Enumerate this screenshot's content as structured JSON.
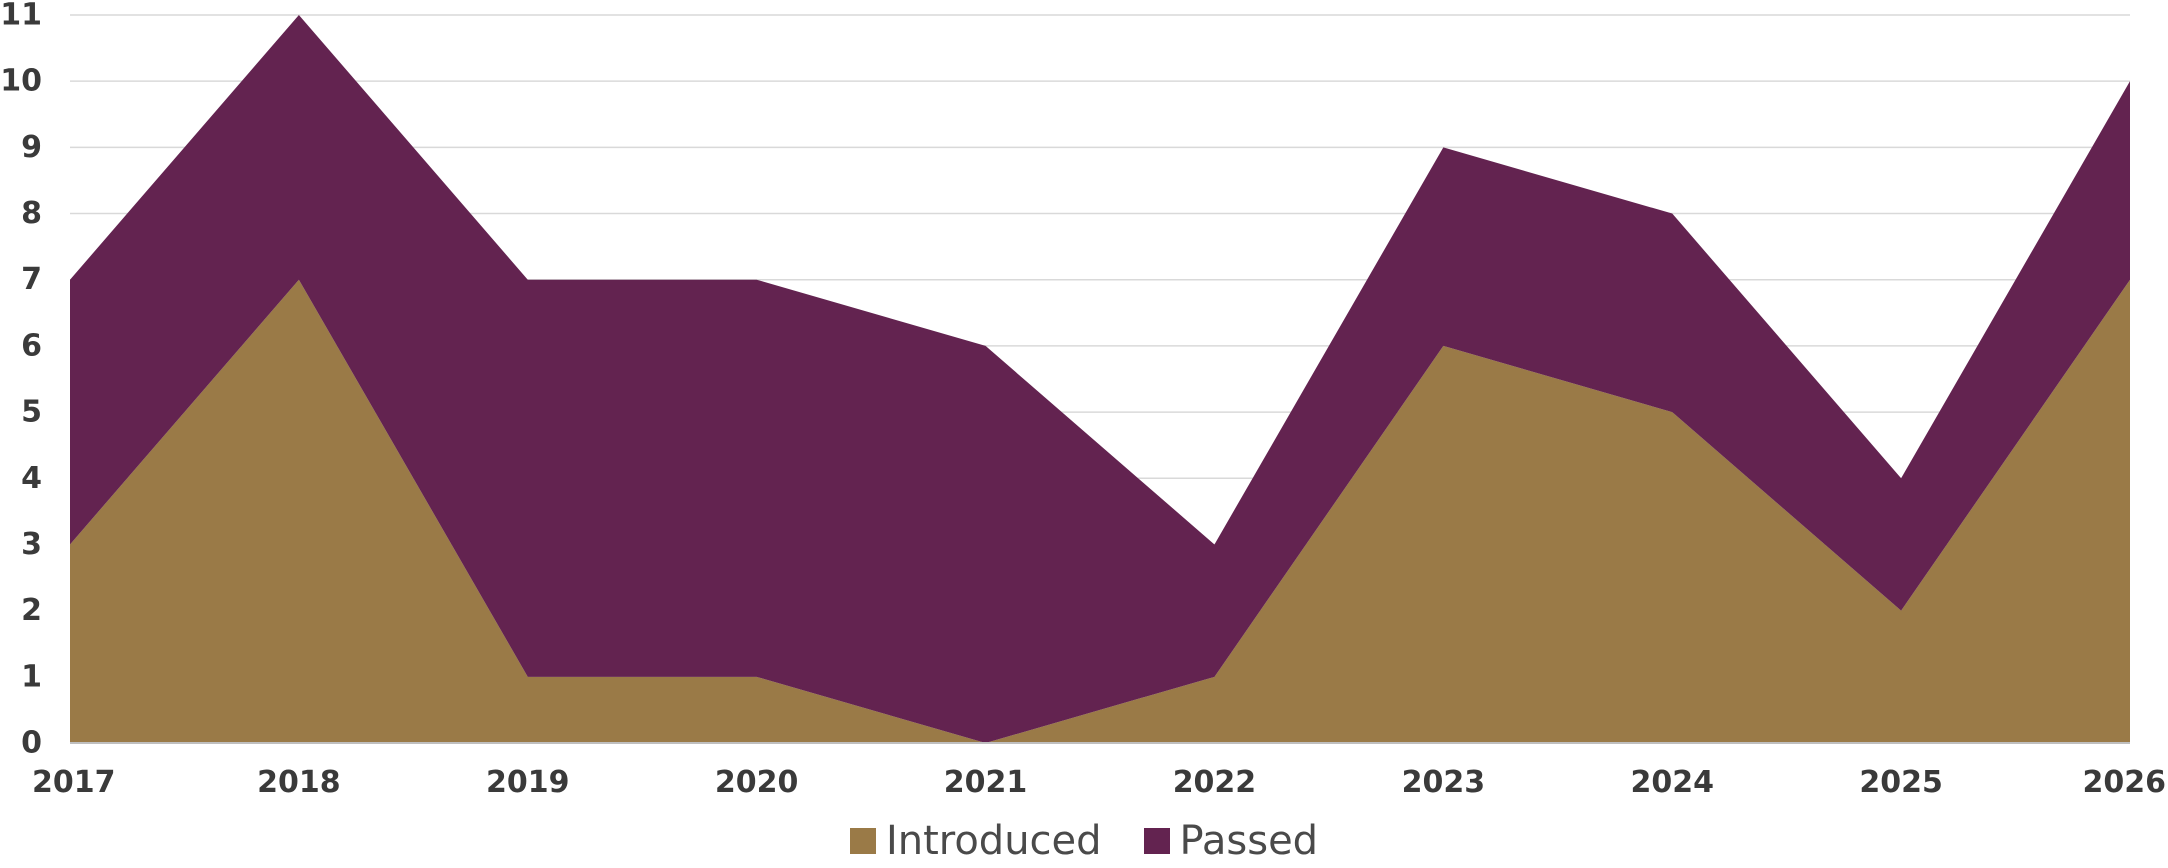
{
  "chart_data": {
    "type": "area",
    "stacked": true,
    "x": [
      "2017",
      "2018",
      "2019",
      "2020",
      "2021",
      "2022",
      "2023",
      "2024",
      "2025",
      "2026"
    ],
    "series": [
      {
        "name": "Introduced",
        "color": "#9A7A47",
        "values": [
          3,
          7,
          1,
          1,
          0,
          1,
          6,
          5,
          2,
          7
        ]
      },
      {
        "name": "Passed",
        "color": "#632350",
        "values": [
          4,
          4,
          6,
          6,
          6,
          2,
          3,
          3,
          2,
          3
        ]
      }
    ],
    "title": "",
    "xlabel": "",
    "ylabel": "",
    "ylim": [
      0,
      11
    ],
    "yticks": [
      "0",
      "1",
      "2",
      "3",
      "4",
      "5",
      "6",
      "7",
      "8",
      "9",
      "10",
      "11"
    ],
    "grid": true,
    "gridColor": "#D9D9D9",
    "legend": "bottom"
  }
}
